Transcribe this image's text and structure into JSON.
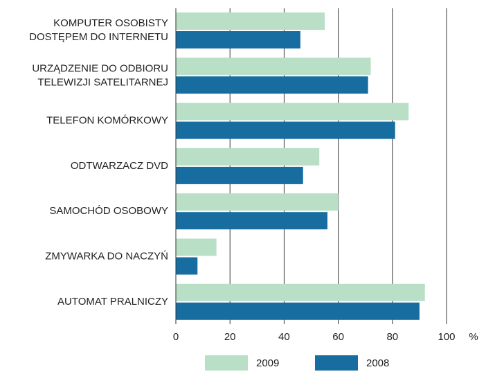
{
  "chart_data": {
    "type": "hbar",
    "categories": [
      "KOMPUTER OSOBISTY\nDOSTĘPEM DO INTERNETU",
      "URZĄDZENIE DO ODBIORU\nTELEWIZJI SATELITARNEJ",
      "TELEFON KOMÓRKOWY",
      "ODTWARZACZ DVD",
      "SAMOCHÓD OSOBOWY",
      "ZMYWARKA DO NACZYŃ",
      "AUTOMAT PRALNICZY"
    ],
    "series": [
      {
        "name": "2009",
        "color": "#b9dfc7",
        "values": [
          55,
          72,
          86,
          53,
          60,
          15,
          92
        ]
      },
      {
        "name": "2008",
        "color": "#176ca0",
        "values": [
          46,
          71,
          81,
          47,
          56,
          8,
          90
        ]
      }
    ],
    "xlim": [
      0,
      100
    ],
    "xticks": [
      0,
      20,
      40,
      60,
      80,
      100
    ],
    "x_unit": "%",
    "grid": true
  }
}
